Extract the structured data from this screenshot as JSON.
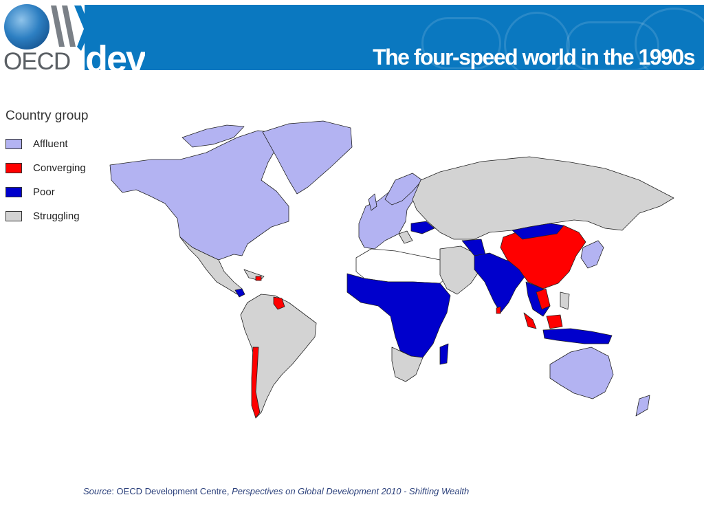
{
  "header": {
    "title": "The four-speed world in the 1990s",
    "logo_text": "OECD",
    "dev_text": "dev"
  },
  "legend": {
    "title": "Country group",
    "items": [
      {
        "label": "Affluent",
        "color": "#b3b3f2"
      },
      {
        "label": "Converging",
        "color": "#ff0000"
      },
      {
        "label": "Poor",
        "color": "#0000cc"
      },
      {
        "label": "Struggling",
        "color": "#d3d3d3"
      }
    ]
  },
  "colors": {
    "affluent": "#b3b3f2",
    "converging": "#ff0000",
    "poor": "#0000cc",
    "struggling": "#d3d3d3",
    "nodata": "#ffffff",
    "banner": "#0a78c0"
  },
  "source": {
    "label": "Source",
    "org": ": OECD Development Centre, ",
    "publication": "Perspectives on Global Development 2010 - Shifting Wealth"
  }
}
